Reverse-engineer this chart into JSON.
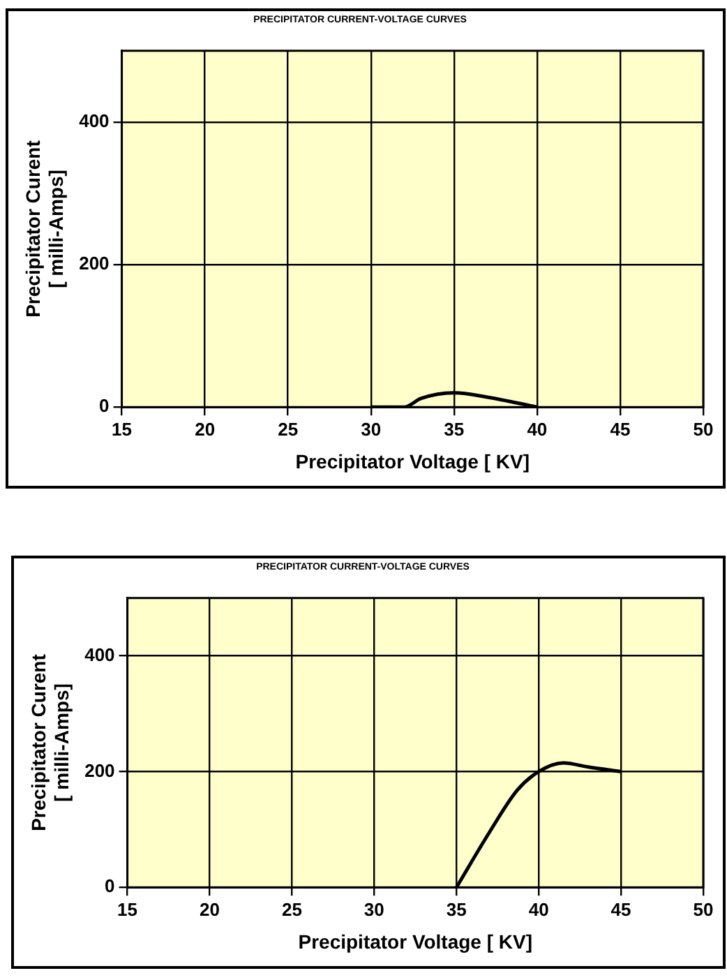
{
  "chart_data": [
    {
      "type": "line",
      "title": "PRECIPITATOR CURRENT-VOLTAGE CURVES",
      "xlabel": "Precipitator Voltage [ KV]",
      "ylabel": "Precipitator Curent\n[ milli-Amps]",
      "xlim": [
        15,
        50
      ],
      "xticks": [
        15,
        20,
        25,
        30,
        35,
        40,
        45,
        50
      ],
      "ylim": [
        0,
        500
      ],
      "yticks": [
        0,
        200,
        400
      ],
      "grid": true,
      "legend": false,
      "marker": "none",
      "series": [
        {
          "color": "#000000",
          "x": [
            30,
            32,
            33,
            35,
            37,
            40
          ],
          "values": [
            0,
            0,
            12,
            20,
            14,
            0
          ]
        }
      ]
    },
    {
      "type": "line",
      "title": "PRECIPITATOR CURRENT-VOLTAGE CURVES",
      "xlabel": "Precipitator Voltage [ KV]",
      "ylabel": "Precipitator Curent\n[ milli-Amps]",
      "xlim": [
        15,
        50
      ],
      "xticks": [
        15,
        20,
        25,
        30,
        35,
        40,
        45,
        50
      ],
      "ylim": [
        0,
        500
      ],
      "yticks": [
        0,
        200,
        400
      ],
      "grid": true,
      "legend": false,
      "marker": "none",
      "series": [
        {
          "color": "#000000",
          "x": [
            35,
            37,
            38.7,
            40,
            41.5,
            43,
            45
          ],
          "values": [
            0,
            95,
            168,
            200,
            215,
            208,
            200
          ]
        }
      ]
    }
  ]
}
